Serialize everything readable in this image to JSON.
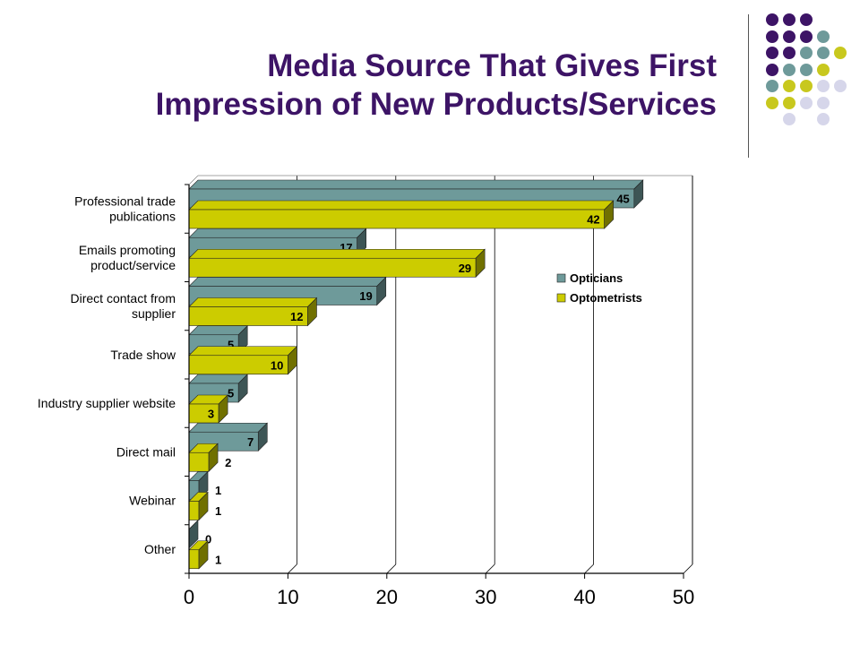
{
  "title_line1": "Media Source That Gives First",
  "title_line2": "Impression of New Products/Services",
  "decor_colors": {
    "purple": "#3d1466",
    "teal": "#6e9a9a",
    "olive": "#c8c81e",
    "lavender": "#d6d6ea"
  },
  "decor_grid": [
    [
      "purple",
      "purple",
      "purple",
      null,
      null
    ],
    [
      "purple",
      "purple",
      "purple",
      "teal",
      null
    ],
    [
      "purple",
      "purple",
      "teal",
      "teal",
      "olive"
    ],
    [
      "purple",
      "teal",
      "teal",
      "olive",
      null
    ],
    [
      "teal",
      "olive",
      "olive",
      "lavender",
      "lavender"
    ],
    [
      "olive",
      "olive",
      "lavender",
      "lavender",
      null
    ],
    [
      null,
      "lavender",
      null,
      "lavender",
      null
    ]
  ],
  "chart_data": {
    "type": "bar",
    "orientation": "horizontal",
    "categories": [
      [
        "Professional trade",
        "publications"
      ],
      [
        "Emails promoting",
        "product/service"
      ],
      [
        "Direct contact from",
        "supplier"
      ],
      [
        "Trade show"
      ],
      [
        "Industry supplier website"
      ],
      [
        "Direct mail"
      ],
      [
        "Webinar"
      ],
      [
        "Other"
      ]
    ],
    "series": [
      {
        "name": "Opticians",
        "color": "#6e9a9a",
        "values": [
          45,
          17,
          19,
          5,
          5,
          7,
          1,
          0
        ]
      },
      {
        "name": "Optometrists",
        "color": "#cccc00",
        "values": [
          42,
          29,
          12,
          10,
          3,
          2,
          1,
          1
        ]
      }
    ],
    "xlim": [
      0,
      50
    ],
    "xticks": [
      0,
      10,
      20,
      30,
      40,
      50
    ],
    "grid": "vertical",
    "legend_position": "right"
  }
}
